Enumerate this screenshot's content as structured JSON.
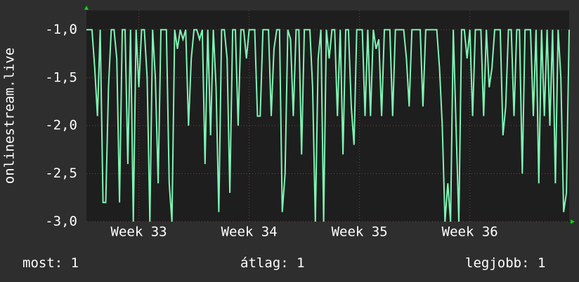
{
  "chart_data": {
    "type": "line",
    "y_label": "onlinestream.live",
    "series": [
      {
        "name": "onlinestream.live",
        "color": "#7ff5b4",
        "values": [
          -1,
          -1,
          -1,
          -1.4,
          -1.9,
          -1,
          -2.8,
          -2.8,
          -1.6,
          -1,
          -1,
          -1.3,
          -2.8,
          -1,
          -1,
          -2.4,
          -1,
          -3,
          -1,
          -1.6,
          -1,
          -1,
          -1.5,
          -3,
          -1,
          -1.5,
          -2.6,
          -1,
          -1,
          -1,
          -2.6,
          -3,
          -1,
          -1.2,
          -1,
          -1.1,
          -1,
          -2,
          -1.3,
          -1,
          -1,
          -1.1,
          -1,
          -2.4,
          -1,
          -2.1,
          -1,
          -1.6,
          -2.9,
          -1,
          -1,
          -1.3,
          -2.7,
          -1,
          -1,
          -2,
          -1,
          -1,
          -1.3,
          -1,
          -1,
          -1,
          -1.9,
          -1.9,
          -1,
          -1,
          -1,
          -1.9,
          -1.2,
          -1,
          -1,
          -2.9,
          -2.5,
          -1,
          -1.1,
          -1.9,
          -1,
          -1,
          -2.3,
          -1,
          -1,
          -1,
          -1.6,
          -3,
          -1.3,
          -1,
          -3,
          -1,
          -1.3,
          -1,
          -1,
          -1.9,
          -1,
          -2.3,
          -1,
          -1,
          -1.8,
          -2.2,
          -1,
          -1,
          -1,
          -1.9,
          -1,
          -1.9,
          -1,
          -1.2,
          -1.1,
          -1.9,
          -1,
          -1,
          -1,
          -1.9,
          -1,
          -1,
          -1,
          -1,
          -1.3,
          -1.8,
          -1,
          -1,
          -1,
          -1,
          -1.8,
          -1,
          -1,
          -1,
          -1,
          -1,
          -1.4,
          -2,
          -3,
          -2.6,
          -3,
          -1,
          -2,
          -3,
          -1,
          -1,
          -1.3,
          -1,
          -1.9,
          -1,
          -1,
          -1,
          -1.9,
          -1,
          -1.6,
          -1.4,
          -1,
          -1,
          -1,
          -2.1,
          -1.8,
          -1,
          -1,
          -1.9,
          -1,
          -1,
          -2.5,
          -1,
          -1,
          -1,
          -1.9,
          -1,
          -2.6,
          -1,
          -1.9,
          -1,
          -2,
          -1,
          -2.6,
          -1,
          -1.5,
          -2.9,
          -2.7,
          -1
        ]
      }
    ],
    "xlim": [
      0,
      175
    ],
    "xticks": [
      {
        "value": 19,
        "label": "Week 33"
      },
      {
        "value": 59,
        "label": "Week 34"
      },
      {
        "value": 99,
        "label": "Week 35"
      },
      {
        "value": 139,
        "label": "Week 36"
      }
    ],
    "ylim": [
      -3.0,
      -0.8
    ],
    "yticks": [
      {
        "value": -3,
        "label": "-3,0"
      },
      {
        "value": -2.5,
        "label": "-2,5"
      },
      {
        "value": -2,
        "label": "-2,0"
      },
      {
        "value": -1.5,
        "label": "-1,5"
      },
      {
        "value": -1,
        "label": "-1,0"
      }
    ],
    "grid": true,
    "stats": [
      {
        "label": "most:",
        "value": 1
      },
      {
        "label": "átlag:",
        "value": 1
      },
      {
        "label": "legjobb:",
        "value": 1
      }
    ]
  }
}
